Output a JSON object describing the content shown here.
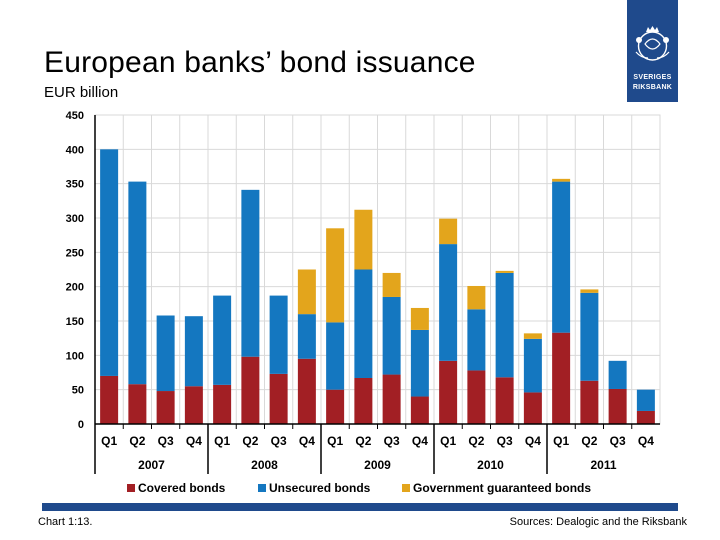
{
  "header": {
    "title": "European banks’ bond issuance",
    "subtitle": "EUR billion"
  },
  "logo": {
    "line1": "SVERIGES",
    "line2": "RIKSBANK"
  },
  "footer": {
    "chart_number": "Chart 1:13.",
    "sources": "Sources: Dealogic and the Riksbank"
  },
  "colors": {
    "covered": "#a21f24",
    "unsecured": "#1477c0",
    "government": "#e3a51c",
    "brand": "#1f4a8c"
  },
  "chart_data": {
    "type": "bar",
    "stacked": true,
    "title": "",
    "xlabel": "",
    "ylabel": "",
    "ylim": [
      0,
      450
    ],
    "yticks": [
      0,
      50,
      100,
      150,
      200,
      250,
      300,
      350,
      400,
      450
    ],
    "grid": true,
    "legend_position": "bottom",
    "categories": [
      "Q1",
      "Q2",
      "Q3",
      "Q4",
      "Q1",
      "Q2",
      "Q3",
      "Q4",
      "Q1",
      "Q2",
      "Q3",
      "Q4",
      "Q1",
      "Q2",
      "Q3",
      "Q4",
      "Q1",
      "Q2",
      "Q3",
      "Q4"
    ],
    "year_groups": [
      {
        "label": "2007",
        "count": 4
      },
      {
        "label": "2008",
        "count": 4
      },
      {
        "label": "2009",
        "count": 4
      },
      {
        "label": "2010",
        "count": 4
      },
      {
        "label": "2011",
        "count": 4
      }
    ],
    "series": [
      {
        "name": "Covered bonds",
        "color": "#a21f24",
        "values": [
          70,
          58,
          48,
          55,
          57,
          98,
          73,
          95,
          50,
          67,
          72,
          40,
          92,
          78,
          68,
          46,
          133,
          63,
          51,
          19
        ]
      },
      {
        "name": "Unsecured bonds",
        "color": "#1477c0",
        "values": [
          330,
          295,
          110,
          102,
          130,
          243,
          114,
          65,
          98,
          158,
          113,
          97,
          170,
          89,
          152,
          78,
          220,
          128,
          41,
          31
        ]
      },
      {
        "name": "Government guaranteed bonds",
        "color": "#e3a51c",
        "values": [
          0,
          0,
          0,
          0,
          0,
          0,
          0,
          65,
          137,
          87,
          35,
          32,
          37,
          34,
          3,
          8,
          4,
          5,
          0,
          0
        ]
      }
    ]
  }
}
